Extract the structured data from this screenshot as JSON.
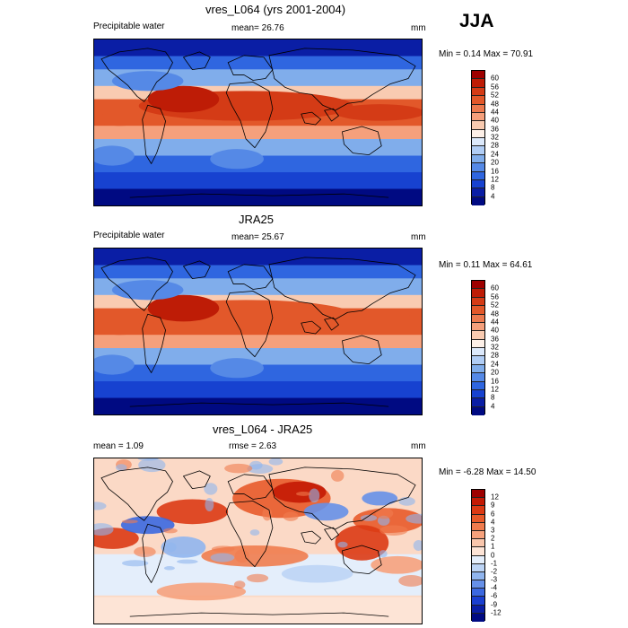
{
  "season_label": "JJA",
  "panels": [
    {
      "title": "vres_L064 (yrs 2001-2004)",
      "left_label": "Precipitable water",
      "center_label": "mean=  26.76",
      "unit_label": "mm",
      "minmax": "Min =   0.14 Max =  70.91",
      "colorbar": {
        "levels": [
          "60",
          "56",
          "52",
          "48",
          "44",
          "40",
          "36",
          "32",
          "28",
          "24",
          "20",
          "16",
          "12",
          "8",
          "4"
        ],
        "colors": [
          "#9e0000",
          "#be1c06",
          "#d43b16",
          "#e2582a",
          "#ec7a4f",
          "#f5a07c",
          "#f9cbb1",
          "#fdf0e8",
          "#dce9fb",
          "#b0cdf5",
          "#80adeb",
          "#5589e6",
          "#2f66e0",
          "#1742d0",
          "#0a1ea5",
          "#000a82"
        ]
      },
      "map_field": "pw_model"
    },
    {
      "title": "JRA25",
      "left_label": "Precipitable water",
      "center_label": "mean=  25.67",
      "unit_label": "mm",
      "minmax": "Min =   0.11 Max =  64.61",
      "colorbar": {
        "levels": [
          "60",
          "56",
          "52",
          "48",
          "44",
          "40",
          "36",
          "32",
          "28",
          "24",
          "20",
          "16",
          "12",
          "8",
          "4"
        ],
        "colors": [
          "#9e0000",
          "#be1c06",
          "#d43b16",
          "#e2582a",
          "#ec7a4f",
          "#f5a07c",
          "#f9cbb1",
          "#fdf0e8",
          "#dce9fb",
          "#b0cdf5",
          "#80adeb",
          "#5589e6",
          "#2f66e0",
          "#1742d0",
          "#0a1ea5",
          "#000a82"
        ]
      },
      "map_field": "pw_obs"
    },
    {
      "title": "vres_L064 - JRA25",
      "left_label": "mean =   1.09",
      "center_label": "rmse =   2.63",
      "unit_label": "mm",
      "minmax": "Min =  -6.28 Max =  14.50",
      "colorbar": {
        "levels": [
          "12",
          "9",
          "6",
          "4",
          "3",
          "2",
          "1",
          "0",
          "-1",
          "-2",
          "-3",
          "-4",
          "-6",
          "-9",
          "-12"
        ],
        "colors": [
          "#9e0000",
          "#c41a04",
          "#dc3a14",
          "#e85a2a",
          "#f07c4e",
          "#f6a17c",
          "#f9c6ac",
          "#fde4d6",
          "#e4eefb",
          "#bcd4f5",
          "#90b5ee",
          "#6690e8",
          "#3b68e0",
          "#1a3fd0",
          "#0a1ea5",
          "#000a82"
        ]
      },
      "map_field": "pw_diff"
    }
  ]
}
